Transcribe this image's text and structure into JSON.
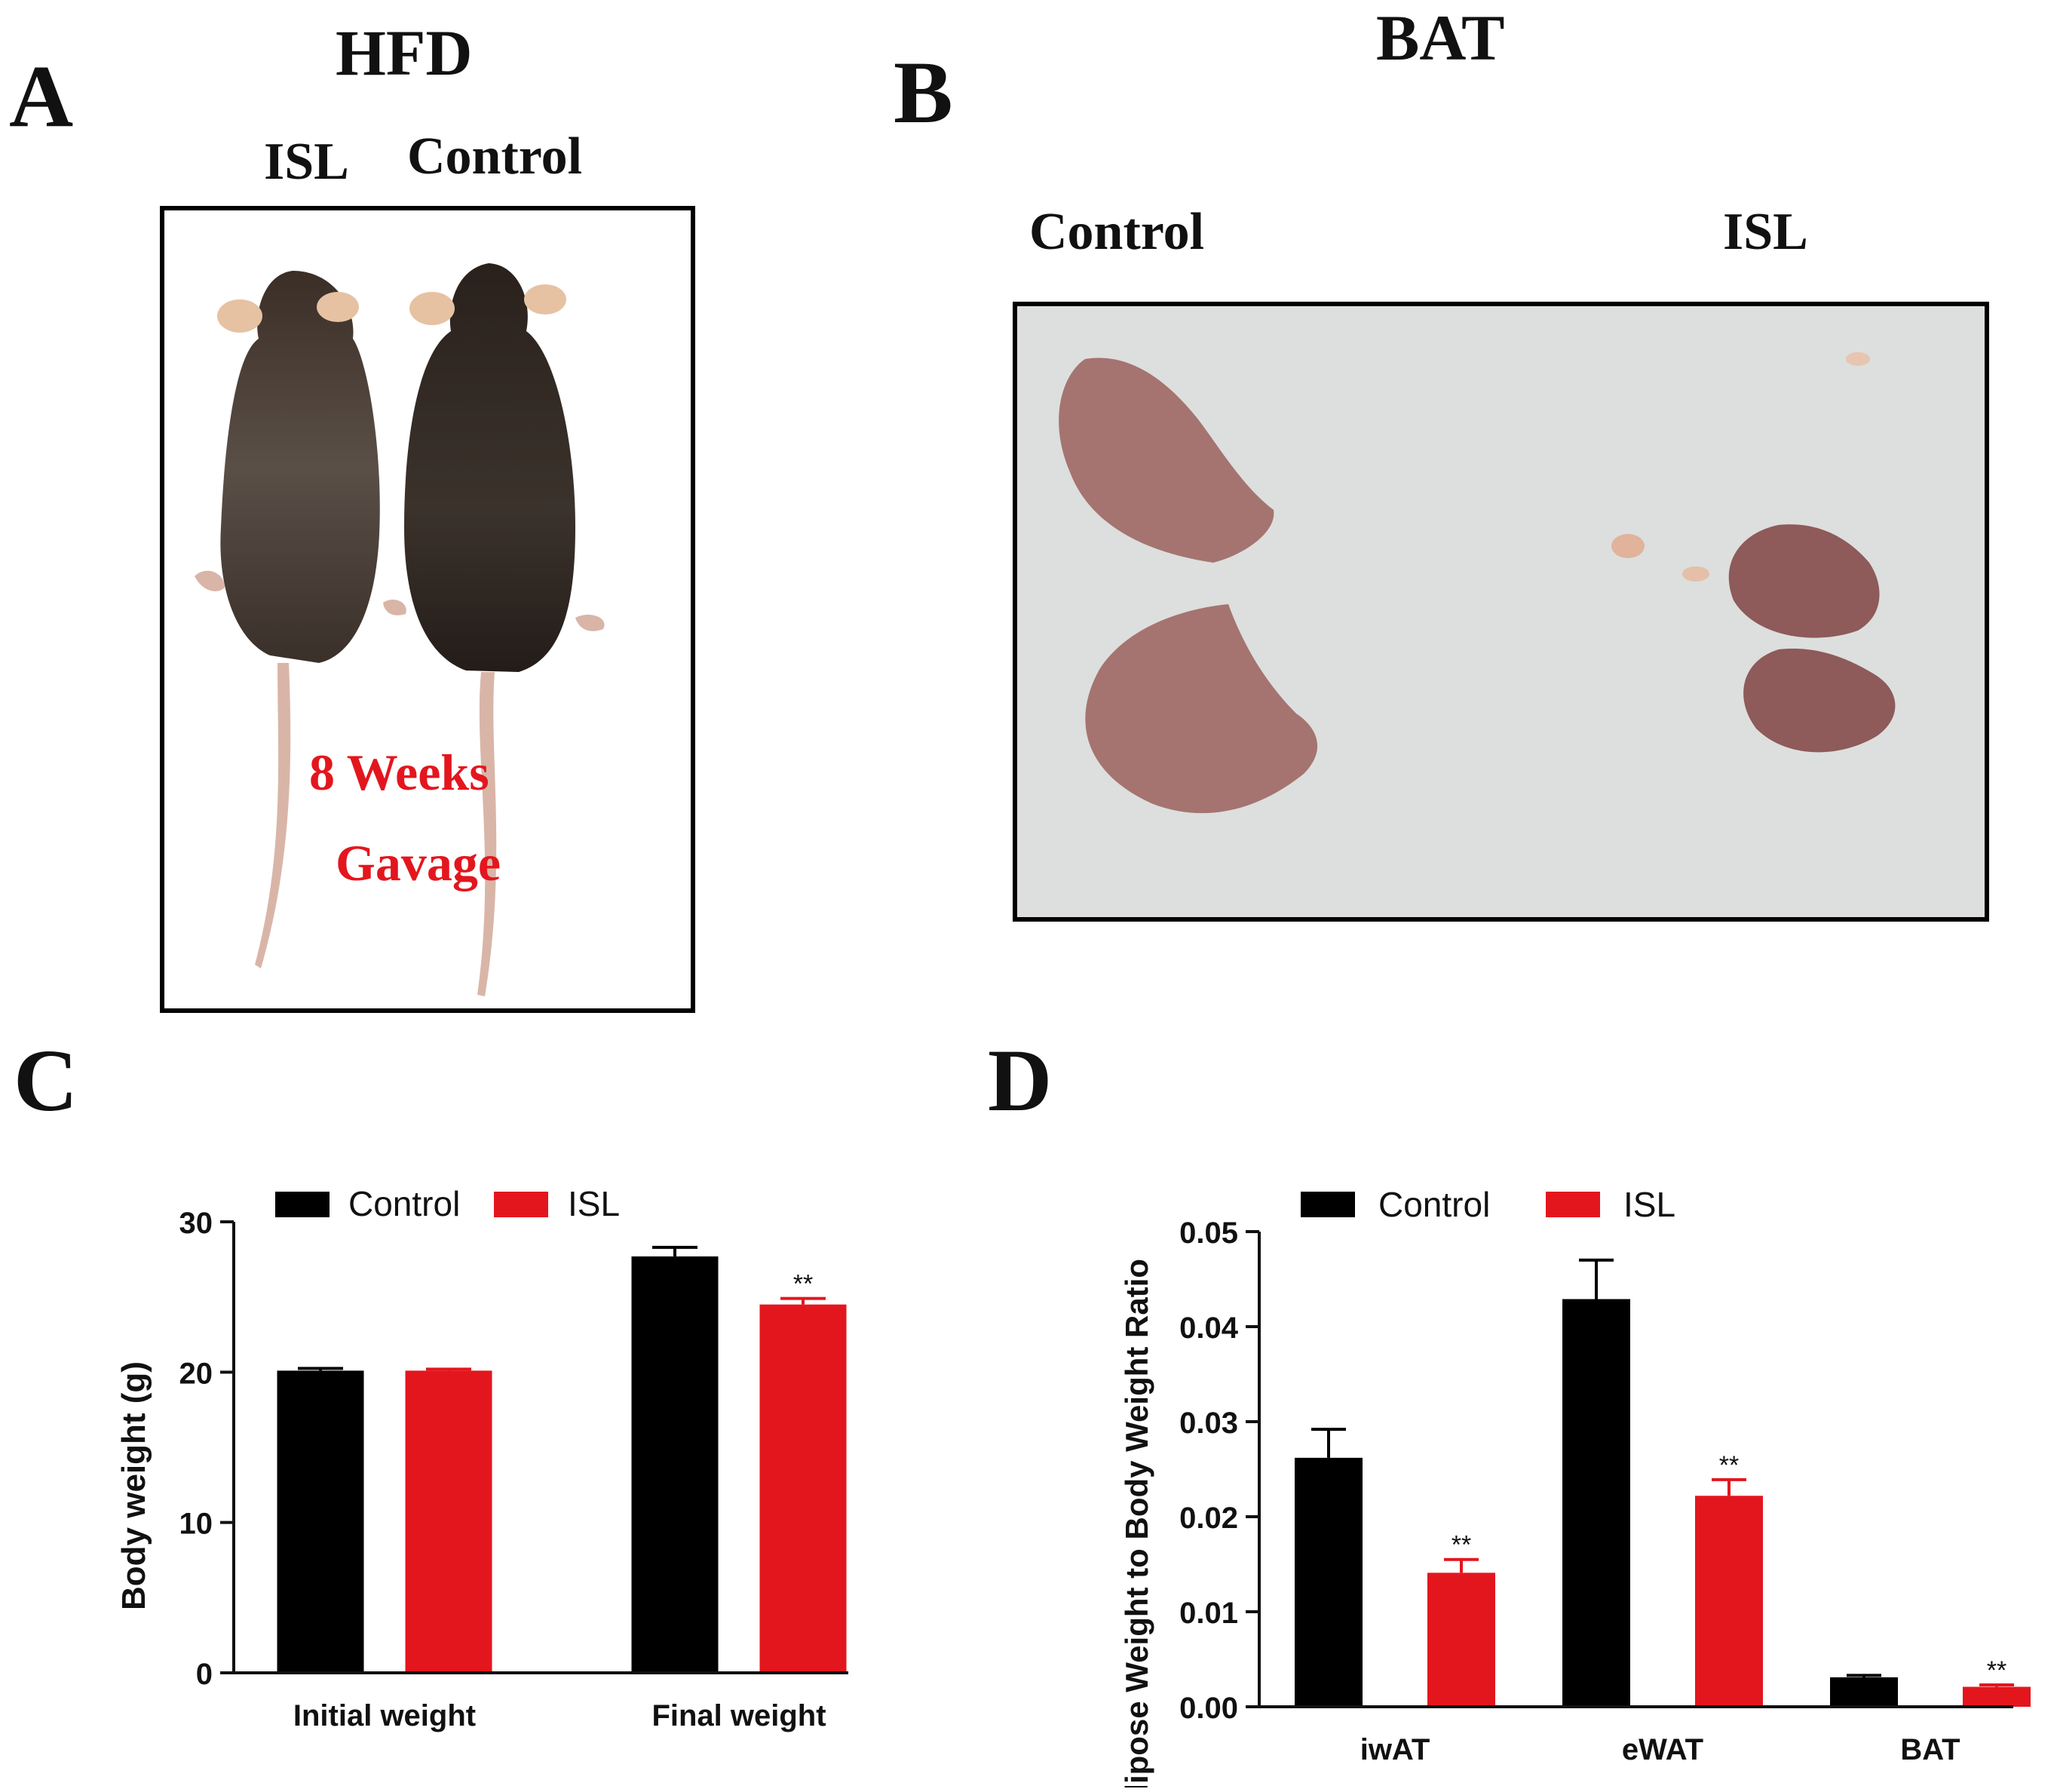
{
  "panels": {
    "a": {
      "letter": "A",
      "title": "HFD",
      "left_label": "ISL",
      "right_label": "Control",
      "caption_line1": "8 Weeks",
      "caption_line2": "Gavage"
    },
    "b": {
      "letter": "B",
      "title": "BAT",
      "left_label": "Control",
      "right_label": "ISL"
    },
    "c": {
      "letter": "C"
    },
    "d": {
      "letter": "D"
    }
  },
  "colors": {
    "control": "#000000",
    "isl": "#e3161e",
    "caption": "#e3161e"
  },
  "chart_data": [
    {
      "type": "bar",
      "panel": "C",
      "categories": [
        "Initial weight",
        "Final weight"
      ],
      "series": [
        {
          "name": "Control",
          "values": [
            20.1,
            27.7
          ],
          "errors": [
            0.15,
            0.6
          ],
          "sig": [
            "",
            ""
          ]
        },
        {
          "name": "ISL",
          "values": [
            20.1,
            24.5
          ],
          "errors": [
            0.1,
            0.4
          ],
          "sig": [
            "",
            "**"
          ]
        }
      ],
      "ylabel": "Body weight (g)",
      "ylim": [
        0,
        30
      ],
      "yticks": [
        "0",
        "10",
        "20",
        "30"
      ],
      "legend": "top-left"
    },
    {
      "type": "bar",
      "panel": "D",
      "categories": [
        "iwAT",
        "eWAT",
        "BAT"
      ],
      "series": [
        {
          "name": "Control",
          "values": [
            0.0262,
            0.0429,
            0.0031
          ],
          "errors": [
            0.003,
            0.0041,
            0.0002
          ],
          "sig": [
            "",
            "",
            ""
          ]
        },
        {
          "name": "ISL",
          "values": [
            0.0141,
            0.0222,
            0.0021
          ],
          "errors": [
            0.0014,
            0.0017,
            0.0002
          ],
          "sig": [
            "**",
            "**",
            "**"
          ]
        }
      ],
      "ylabel": "Adipose Weight to Body Weight Ratio",
      "ylim": [
        0,
        0.05
      ],
      "yticks": [
        "0.00",
        "0.01",
        "0.02",
        "0.03",
        "0.04",
        "0.05"
      ],
      "legend": "top-left"
    }
  ]
}
